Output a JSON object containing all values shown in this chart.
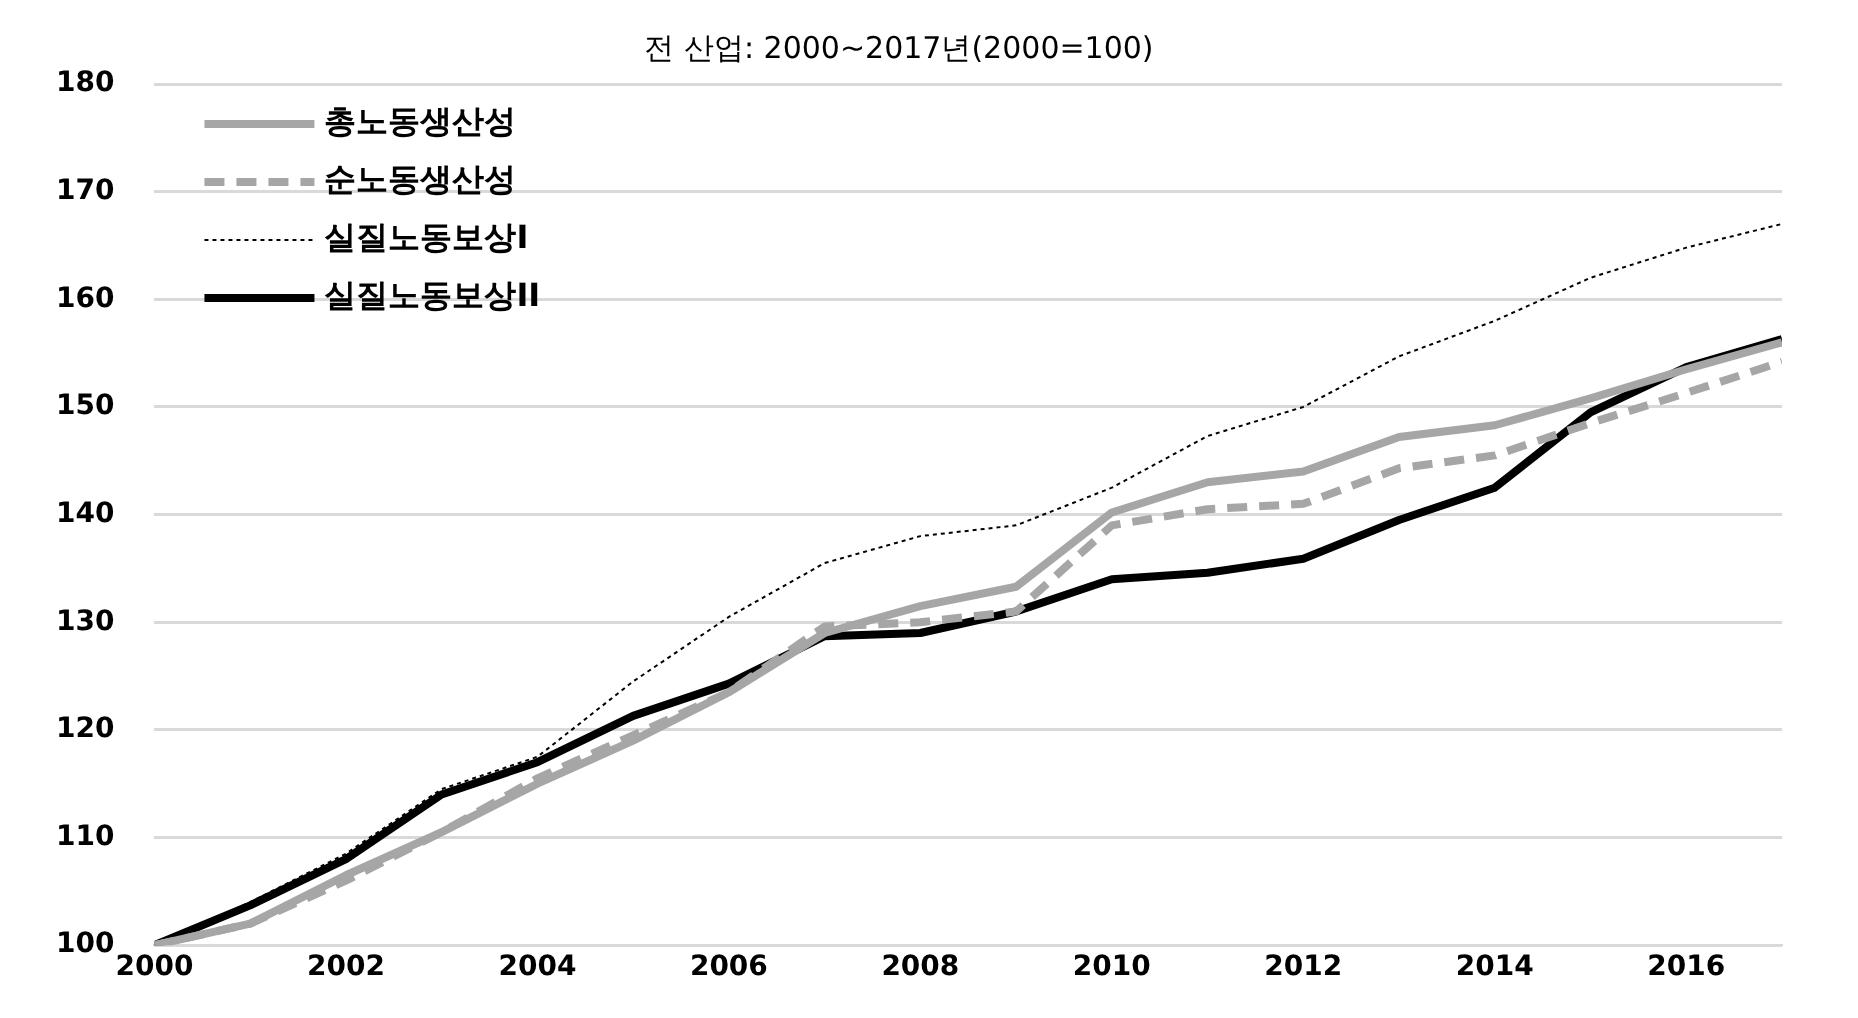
{
  "chart_data": {
    "type": "line",
    "title": "전 산업: 2000~2017년(2000=100)",
    "x": [
      2000,
      2001,
      2002,
      2003,
      2004,
      2005,
      2006,
      2007,
      2008,
      2009,
      2010,
      2011,
      2012,
      2013,
      2014,
      2015,
      2016,
      2017
    ],
    "xlim": [
      2000,
      2017
    ],
    "xticks": [
      2000,
      2002,
      2004,
      2006,
      2008,
      2010,
      2012,
      2014,
      2016
    ],
    "ylim": [
      100,
      180
    ],
    "yticks": [
      100,
      110,
      120,
      130,
      140,
      150,
      160,
      170,
      180
    ],
    "grid": "y",
    "legend": "top left",
    "marker": "none",
    "series": [
      {
        "name": "총노동생산성",
        "color": "#a6a6a6",
        "line_style": "solid",
        "values": [
          100,
          102,
          106.5,
          110.5,
          115,
          119,
          123.5,
          129,
          131.5,
          133.3,
          140.2,
          143,
          144,
          147.2,
          148.3,
          150.8,
          153.5,
          156
        ]
      },
      {
        "name": "순노동생산성",
        "color": "#a6a6a6",
        "line_style": "dashed",
        "values": [
          100,
          102,
          106,
          110.5,
          115.5,
          119.5,
          123.5,
          129.6,
          130,
          131,
          139,
          140.5,
          141,
          144.3,
          145.5,
          148.5,
          151.3,
          154.2
        ]
      },
      {
        "name": "실질노동보상I",
        "color": "#000000",
        "line_style": "dotted",
        "values": [
          100,
          104,
          108.5,
          114.5,
          117.5,
          124.5,
          130.5,
          135.5,
          138,
          139,
          142.5,
          147.3,
          150,
          154.7,
          158,
          162,
          164.8,
          167
        ]
      },
      {
        "name": "실질노동보상II",
        "color": "#000000",
        "line_style": "solid",
        "values": [
          100,
          103.7,
          108,
          114,
          117,
          121.3,
          124.3,
          128.7,
          129,
          131,
          134,
          134.6,
          135.9,
          139.5,
          142.5,
          149.5,
          153.7,
          156.3
        ]
      }
    ]
  }
}
